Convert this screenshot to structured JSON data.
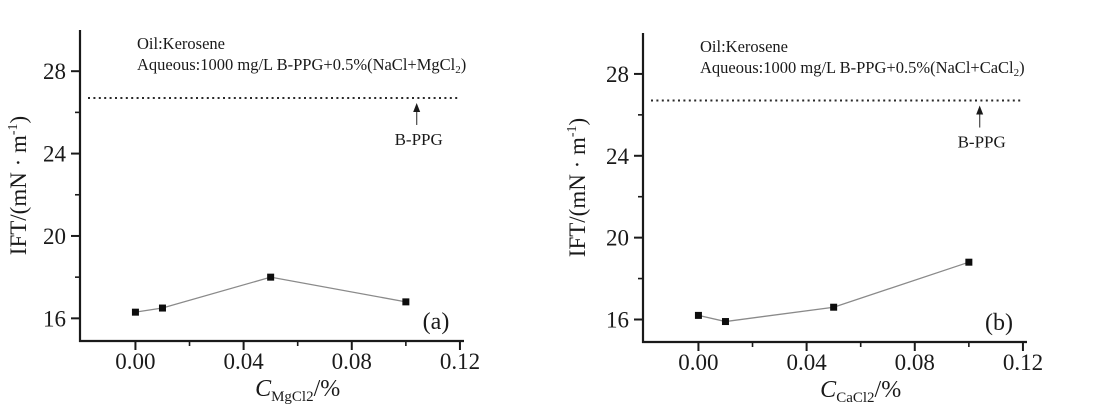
{
  "colors": {
    "background": "#ffffff",
    "axis": "#1a1a1a",
    "text": "#1a1a1a",
    "series_line": "#8a8a8a",
    "marker": "#0d0d0d",
    "ref_line": "#2a2a2a"
  },
  "chart_data": [
    {
      "id": "a",
      "type": "line",
      "panel_label": "(a)",
      "legend": {
        "line1": "Oil:Kerosene",
        "line2_main": "Aqueous:1000 mg/L B-PPG+0.5%(NaCl+MgCl",
        "line2_sub": "2",
        "line2_close": ")"
      },
      "xlabel": {
        "symbol": "C",
        "sub": "MgCl2",
        "suffix": "/%"
      },
      "ylabel": {
        "main": "IFT/(mN · m",
        "sup": "-1",
        "close": ")"
      },
      "x": [
        0.0,
        0.01,
        0.05,
        0.1
      ],
      "y": [
        16.3,
        16.5,
        18.0,
        16.8
      ],
      "xlim": [
        -0.0205,
        0.1215
      ],
      "ylim": [
        14.9,
        30.0
      ],
      "xticks": {
        "major": [
          0.0,
          0.04,
          0.08,
          0.12
        ],
        "labels": [
          "0.00",
          "0.04",
          "0.08",
          "0.12"
        ],
        "minor": [
          0.02,
          0.06,
          0.1
        ]
      },
      "yticks": {
        "major": [
          16,
          20,
          24,
          28
        ],
        "labels": [
          "16",
          "20",
          "24",
          "28"
        ],
        "minor": [
          18,
          22,
          26
        ]
      },
      "ref_line": {
        "value": 26.7,
        "label": "B-PPG",
        "label_x": 0.104,
        "style": "dotted"
      },
      "grid": false,
      "legend_position": "top-left-inside"
    },
    {
      "id": "b",
      "type": "line",
      "panel_label": "(b)",
      "legend": {
        "line1": "Oil:Kerosene",
        "line2_main": "Aqueous:1000 mg/L B-PPG+0.5%(NaCl+CaCl",
        "line2_sub": "2",
        "line2_close": ")"
      },
      "xlabel": {
        "symbol": "C",
        "sub": "CaCl2",
        "suffix": "/%"
      },
      "ylabel": {
        "main": "IFT/(mN · m",
        "sup": "-1",
        "close": ")"
      },
      "x": [
        0.0,
        0.01,
        0.05,
        0.1
      ],
      "y": [
        16.2,
        15.9,
        16.6,
        18.8
      ],
      "xlim": [
        -0.0205,
        0.1215
      ],
      "ylim": [
        14.9,
        30.0
      ],
      "xticks": {
        "major": [
          0.0,
          0.04,
          0.08,
          0.12
        ],
        "labels": [
          "0.00",
          "0.04",
          "0.08",
          "0.12"
        ],
        "minor": [
          0.02,
          0.06,
          0.1
        ]
      },
      "yticks": {
        "major": [
          16,
          20,
          24,
          28
        ],
        "labels": [
          "16",
          "20",
          "24",
          "28"
        ],
        "minor": [
          18,
          22,
          26
        ]
      },
      "ref_line": {
        "value": 26.7,
        "label": "B-PPG",
        "label_x": 0.104,
        "style": "dotted"
      },
      "grid": false,
      "legend_position": "top-left-inside"
    }
  ]
}
